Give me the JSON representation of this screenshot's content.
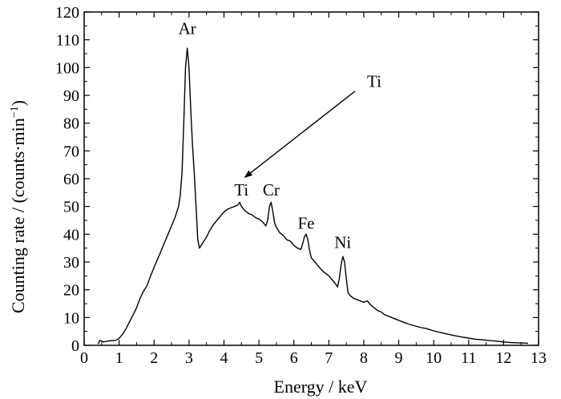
{
  "chart_data": {
    "type": "line",
    "xlabel": "Energy / keV",
    "ylabel": "Counting rate / (counts·min",
    "ylabel_superscript": "−1",
    "ylabel_close": ")",
    "xlim": [
      0,
      13
    ],
    "ylim": [
      0,
      120
    ],
    "x_ticks": [
      0,
      1,
      2,
      3,
      4,
      5,
      6,
      7,
      8,
      9,
      10,
      11,
      12,
      13
    ],
    "y_ticks": [
      0,
      10,
      20,
      30,
      40,
      50,
      60,
      70,
      80,
      90,
      100,
      110,
      120
    ],
    "grid": false,
    "series": [
      {
        "color": "#000000",
        "points": [
          [
            0.4,
            0.5
          ],
          [
            0.45,
            1.8
          ],
          [
            0.55,
            1.2
          ],
          [
            0.7,
            1.6
          ],
          [
            0.9,
            1.8
          ],
          [
            1.0,
            2.5
          ],
          [
            1.1,
            4.0
          ],
          [
            1.2,
            6.0
          ],
          [
            1.3,
            8.5
          ],
          [
            1.4,
            11.0
          ],
          [
            1.5,
            13.5
          ],
          [
            1.6,
            17.0
          ],
          [
            1.7,
            19.5
          ],
          [
            1.8,
            21.5
          ],
          [
            1.9,
            25.0
          ],
          [
            2.0,
            28.0
          ],
          [
            2.1,
            31.0
          ],
          [
            2.2,
            34.0
          ],
          [
            2.3,
            37.0
          ],
          [
            2.4,
            40.0
          ],
          [
            2.5,
            43.0
          ],
          [
            2.6,
            46.0
          ],
          [
            2.7,
            50.0
          ],
          [
            2.75,
            54.0
          ],
          [
            2.8,
            62.0
          ],
          [
            2.85,
            80.0
          ],
          [
            2.9,
            100.0
          ],
          [
            2.95,
            107.0
          ],
          [
            3.0,
            100.0
          ],
          [
            3.05,
            85.0
          ],
          [
            3.1,
            72.0
          ],
          [
            3.15,
            62.0
          ],
          [
            3.2,
            50.0
          ],
          [
            3.25,
            38.0
          ],
          [
            3.3,
            35.0
          ],
          [
            3.4,
            37.0
          ],
          [
            3.5,
            39.0
          ],
          [
            3.6,
            41.5
          ],
          [
            3.7,
            43.5
          ],
          [
            3.8,
            45.0
          ],
          [
            3.9,
            46.5
          ],
          [
            4.0,
            48.0
          ],
          [
            4.1,
            49.0
          ],
          [
            4.2,
            49.5
          ],
          [
            4.3,
            50.0
          ],
          [
            4.4,
            50.5
          ],
          [
            4.45,
            51.5
          ],
          [
            4.5,
            50.0
          ],
          [
            4.6,
            48.5
          ],
          [
            4.7,
            47.5
          ],
          [
            4.8,
            47.0
          ],
          [
            4.9,
            46.0
          ],
          [
            5.0,
            45.5
          ],
          [
            5.1,
            44.5
          ],
          [
            5.2,
            43.0
          ],
          [
            5.25,
            45.0
          ],
          [
            5.3,
            50.0
          ],
          [
            5.35,
            51.5
          ],
          [
            5.4,
            48.0
          ],
          [
            5.45,
            44.0
          ],
          [
            5.5,
            42.5
          ],
          [
            5.6,
            40.5
          ],
          [
            5.7,
            39.5
          ],
          [
            5.8,
            38.0
          ],
          [
            5.9,
            37.5
          ],
          [
            6.0,
            36.0
          ],
          [
            6.1,
            35.0
          ],
          [
            6.2,
            34.5
          ],
          [
            6.25,
            36.5
          ],
          [
            6.3,
            39.0
          ],
          [
            6.35,
            40.0
          ],
          [
            6.4,
            38.0
          ],
          [
            6.45,
            34.0
          ],
          [
            6.5,
            31.5
          ],
          [
            6.6,
            30.0
          ],
          [
            6.7,
            28.5
          ],
          [
            6.8,
            27.0
          ],
          [
            6.9,
            26.0
          ],
          [
            7.0,
            25.0
          ],
          [
            7.1,
            23.5
          ],
          [
            7.2,
            22.0
          ],
          [
            7.25,
            21.0
          ],
          [
            7.3,
            24.0
          ],
          [
            7.35,
            29.0
          ],
          [
            7.4,
            32.0
          ],
          [
            7.45,
            30.0
          ],
          [
            7.5,
            24.0
          ],
          [
            7.55,
            19.0
          ],
          [
            7.6,
            18.0
          ],
          [
            7.7,
            17.0
          ],
          [
            7.8,
            16.5
          ],
          [
            7.9,
            16.0
          ],
          [
            8.0,
            15.5
          ],
          [
            8.1,
            16.0
          ],
          [
            8.2,
            14.5
          ],
          [
            8.3,
            13.5
          ],
          [
            8.4,
            12.5
          ],
          [
            8.5,
            12.0
          ],
          [
            8.6,
            11.0
          ],
          [
            8.8,
            10.0
          ],
          [
            9.0,
            9.0
          ],
          [
            9.2,
            8.0
          ],
          [
            9.4,
            7.2
          ],
          [
            9.6,
            6.5
          ],
          [
            9.8,
            6.0
          ],
          [
            10.0,
            5.2
          ],
          [
            10.2,
            4.6
          ],
          [
            10.4,
            4.0
          ],
          [
            10.6,
            3.5
          ],
          [
            10.8,
            3.0
          ],
          [
            11.0,
            2.6
          ],
          [
            11.2,
            2.2
          ],
          [
            11.4,
            2.0
          ],
          [
            11.6,
            1.7
          ],
          [
            11.8,
            1.5
          ],
          [
            12.0,
            1.2
          ],
          [
            12.2,
            1.0
          ],
          [
            12.4,
            0.9
          ],
          [
            12.6,
            0.8
          ],
          [
            12.7,
            0.7
          ]
        ]
      }
    ],
    "annotations": [
      {
        "text": "Ar",
        "x": 2.95,
        "y": 112
      },
      {
        "text": "Ti",
        "x": 4.5,
        "y": 54
      },
      {
        "text": "Cr",
        "x": 5.35,
        "y": 54
      },
      {
        "text": "Fe",
        "x": 6.35,
        "y": 42
      },
      {
        "text": "Ni",
        "x": 7.4,
        "y": 35
      },
      {
        "text": "Ti",
        "x": 8.3,
        "y": 93,
        "arrow_to": [
          4.6,
          60.5
        ],
        "arrow_from": [
          7.75,
          91.5
        ]
      }
    ]
  }
}
